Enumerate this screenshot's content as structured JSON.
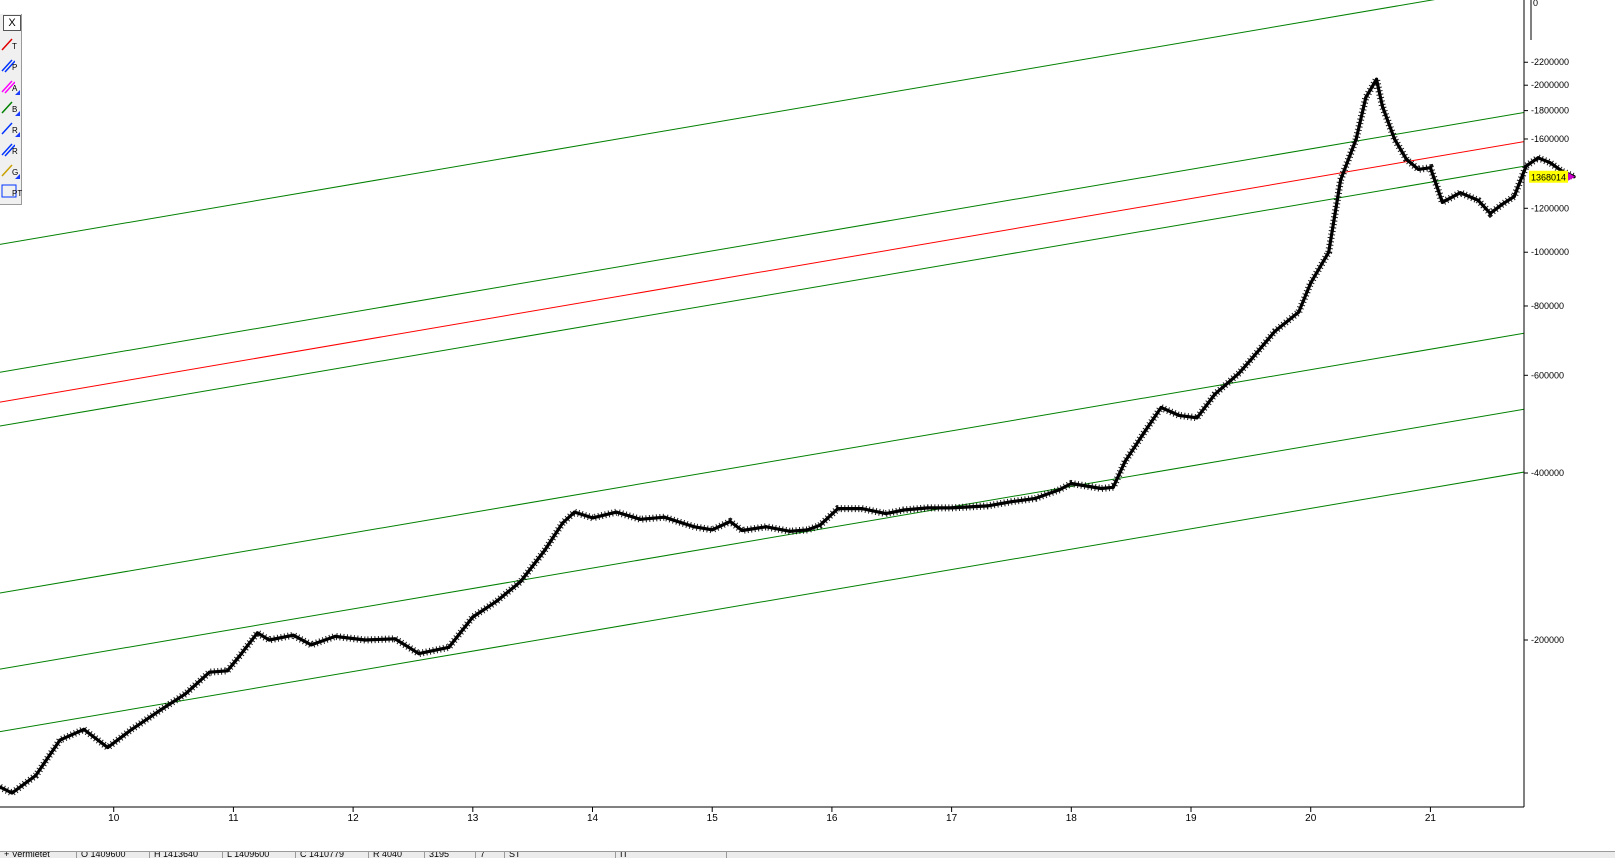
{
  "chart_data": {
    "type": "line",
    "title": "",
    "xlabel": "",
    "ylabel": "",
    "x_ticks": [
      "10",
      "11",
      "12",
      "13",
      "14",
      "15",
      "16",
      "17",
      "18",
      "19",
      "20",
      "21"
    ],
    "y_scale": "log",
    "y_range": [
      100000,
      2600000
    ],
    "y_ticks": [
      "2200000",
      "2000000",
      "1800000",
      "1600000",
      "1200000",
      "1000000",
      "800000",
      "600000",
      "400000",
      "200000"
    ],
    "top_tick_label": "0",
    "last_price_label": "1368014",
    "colors": {
      "price": "#000000",
      "channel": "#008000",
      "trendline": "#ff0000",
      "last_price_bg": "#ffff00",
      "last_marker": "#cc00cc"
    },
    "series": [
      {
        "values": [
          [
            9.0,
            110000
          ],
          [
            9.15,
            106000
          ],
          [
            9.35,
            114000
          ],
          [
            9.55,
            132000
          ],
          [
            9.75,
            138000
          ],
          [
            9.95,
            128000
          ],
          [
            10.15,
            138000
          ],
          [
            10.4,
            150000
          ],
          [
            10.6,
            160000
          ],
          [
            10.8,
            175000
          ],
          [
            10.95,
            176000
          ],
          [
            11.05,
            187000
          ],
          [
            11.2,
            206000
          ],
          [
            11.3,
            200000
          ],
          [
            11.5,
            204000
          ],
          [
            11.65,
            196000
          ],
          [
            11.85,
            203000
          ],
          [
            12.1,
            200000
          ],
          [
            12.35,
            201000
          ],
          [
            12.55,
            189000
          ],
          [
            12.8,
            194000
          ],
          [
            13.0,
            220000
          ],
          [
            13.2,
            235000
          ],
          [
            13.4,
            255000
          ],
          [
            13.6,
            290000
          ],
          [
            13.75,
            325000
          ],
          [
            13.85,
            340000
          ],
          [
            14.0,
            332000
          ],
          [
            14.2,
            340000
          ],
          [
            14.4,
            330000
          ],
          [
            14.6,
            333000
          ],
          [
            14.75,
            325000
          ],
          [
            14.85,
            320000
          ],
          [
            15.0,
            316000
          ],
          [
            15.15,
            327000
          ],
          [
            15.25,
            315000
          ],
          [
            15.45,
            320000
          ],
          [
            15.65,
            314000
          ],
          [
            15.8,
            316000
          ],
          [
            15.9,
            322000
          ],
          [
            16.05,
            345000
          ],
          [
            16.25,
            345000
          ],
          [
            16.45,
            338000
          ],
          [
            16.6,
            343000
          ],
          [
            16.8,
            346000
          ],
          [
            17.0,
            346000
          ],
          [
            17.3,
            349000
          ],
          [
            17.5,
            355000
          ],
          [
            17.7,
            360000
          ],
          [
            17.9,
            373000
          ],
          [
            18.0,
            383000
          ],
          [
            18.25,
            375000
          ],
          [
            18.35,
            377000
          ],
          [
            18.45,
            420000
          ],
          [
            18.6,
            470000
          ],
          [
            18.75,
            525000
          ],
          [
            18.9,
            508000
          ],
          [
            19.05,
            503000
          ],
          [
            19.2,
            555000
          ],
          [
            19.4,
            605000
          ],
          [
            19.5,
            640000
          ],
          [
            19.7,
            720000
          ],
          [
            19.9,
            780000
          ],
          [
            20.0,
            880000
          ],
          [
            20.15,
            1000000
          ],
          [
            20.25,
            1350000
          ],
          [
            20.38,
            1600000
          ],
          [
            20.46,
            1900000
          ],
          [
            20.55,
            2050000
          ],
          [
            20.6,
            1830000
          ],
          [
            20.7,
            1600000
          ],
          [
            20.8,
            1470000
          ],
          [
            20.9,
            1410000
          ],
          [
            21.0,
            1420000
          ],
          [
            21.1,
            1230000
          ],
          [
            21.25,
            1280000
          ],
          [
            21.4,
            1240000
          ],
          [
            21.5,
            1175000
          ],
          [
            21.6,
            1220000
          ],
          [
            21.7,
            1260000
          ],
          [
            21.8,
            1430000
          ],
          [
            21.9,
            1480000
          ],
          [
            22.0,
            1450000
          ],
          [
            22.1,
            1400000
          ],
          [
            22.2,
            1368014
          ]
        ]
      }
    ],
    "channel_lines": [
      [
        [
          8.9,
          1020000
        ],
        [
          22.2,
          3150000
        ]
      ],
      [
        [
          8.9,
          600000
        ],
        [
          22.2,
          1850000
        ]
      ],
      [
        [
          8.9,
          480000
        ],
        [
          22.2,
          1480000
        ]
      ],
      [
        [
          8.9,
          240000
        ],
        [
          22.2,
          740000
        ]
      ],
      [
        [
          8.9,
          175000
        ],
        [
          22.2,
          540000
        ]
      ],
      [
        [
          8.9,
          135000
        ],
        [
          22.2,
          416000
        ]
      ]
    ],
    "trend_line": [
      [
        8.9,
        530000
      ],
      [
        22.2,
        1640000
      ]
    ]
  },
  "toolbar": {
    "close_label": "X",
    "tools": [
      {
        "name": "trendline",
        "letter": "T",
        "color": "#e00000",
        "corner": false
      },
      {
        "name": "parallel",
        "letter": "P",
        "color": "#0033ff",
        "corner": false
      },
      {
        "name": "andrews",
        "letter": "A",
        "color": "#ff00ff",
        "corner": true
      },
      {
        "name": "b-tool",
        "letter": "B",
        "color": "#008000",
        "corner": true
      },
      {
        "name": "r-tool",
        "letter": "R",
        "color": "#0033ff",
        "corner": true
      },
      {
        "name": "r-parallel",
        "letter": "R",
        "color": "#0033ff",
        "corner": false
      },
      {
        "name": "g-tool",
        "letter": "G",
        "color": "#c8a000",
        "corner": true
      },
      {
        "name": "pt-tool",
        "letter": "PT",
        "color": "#0033ff",
        "corner": false
      }
    ]
  },
  "statusbar": {
    "cells": [
      {
        "text": "+ Vermietet",
        "width": 76
      },
      {
        "text": "O 1409600",
        "width": 72
      },
      {
        "text": "H 1413640",
        "width": 72
      },
      {
        "text": "L 1409600",
        "width": 72
      },
      {
        "text": "C 1410779",
        "width": 72
      },
      {
        "text": "R 4040",
        "width": 55
      },
      {
        "text": "3195",
        "width": 50
      },
      {
        "text": "7",
        "width": 28
      },
      {
        "text": "ST",
        "width": 110
      },
      {
        "text": "IT",
        "width": 110
      }
    ]
  }
}
